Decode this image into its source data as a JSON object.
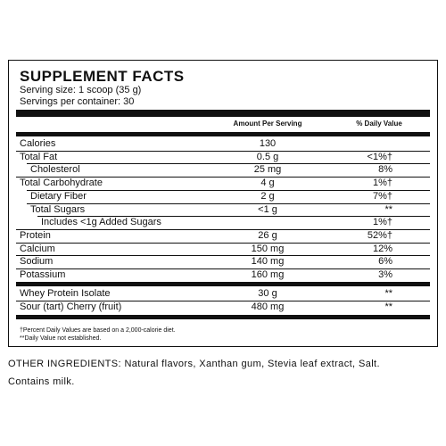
{
  "label": {
    "title": "SUPPLEMENT FACTS",
    "serving_size": "Serving size: 1 scoop (35 g)",
    "servings_per_container": "Servings per container: 30",
    "columns": [
      "Amount Per Serving",
      "% Daily Value"
    ],
    "nutrients": [
      [
        "Calories",
        "130"
      ],
      [
        "Total Fat",
        "0.5 g",
        "<1%†"
      ],
      [
        "Cholesterol",
        "25 mg",
        "8%"
      ],
      [
        "Total Carbohydrate",
        "4 g",
        "1%†"
      ],
      [
        "Dietary Fiber",
        "2 g",
        "7%†"
      ],
      [
        "Total Sugars",
        "<1 g",
        "**"
      ],
      [
        "Includes <1g Added Sugars",
        "",
        "1%†"
      ],
      [
        "Protein",
        "26 g",
        "52%†"
      ],
      [
        "Calcium",
        "150 mg",
        "12%"
      ],
      [
        "Sodium",
        "140 mg",
        "6%"
      ],
      [
        "Potassium",
        "160 mg",
        "3%"
      ]
    ],
    "ingredients": [
      [
        "Whey Protein Isolate",
        "30 g",
        "**"
      ],
      [
        "Sour (tart) Cherry (fruit)",
        "480 mg",
        "**"
      ]
    ],
    "footnotes": [
      "†Percent Daily Values are based on a 2,000-calorie diet.",
      "**Daily Value not established."
    ]
  },
  "other_ingredients": "OTHER INGREDIENTS: Natural flavors, Xanthan gum, Stevia leaf extract, Salt.",
  "allergen": "Contains milk."
}
